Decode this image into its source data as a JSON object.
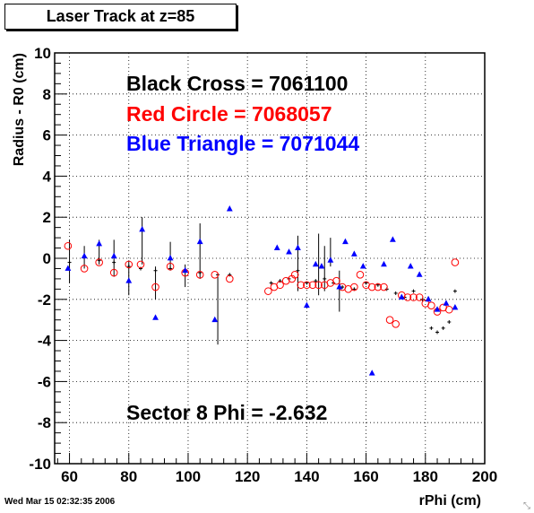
{
  "title": "Laser Track at z=85",
  "timestamp": "Wed Mar 15 02:32:35 2006",
  "colors": {
    "black": "#000000",
    "red": "#ff0000",
    "blue": "#0000ff"
  },
  "chart_data": {
    "type": "scatter",
    "xlabel": "rPhi (cm)",
    "ylabel": "Radius - R0 (cm)",
    "xlim": [
      55,
      200
    ],
    "ylim": [
      -10,
      10
    ],
    "x_ticks": [
      60,
      80,
      100,
      120,
      140,
      160,
      180,
      200
    ],
    "y_ticks": [
      -10,
      -8,
      -6,
      -4,
      -2,
      0,
      2,
      4,
      6,
      8,
      10
    ],
    "grid": true,
    "annotations": [
      {
        "text": "Black Cross  = 7061100",
        "color": "#000000"
      },
      {
        "text": "Red Circle = 7068057",
        "color": "#ff0000"
      },
      {
        "text": "Blue Triangle = 7071044",
        "color": "#0000ff"
      },
      {
        "text": "Sector 8 Phi = -2.632",
        "color": "#000000"
      }
    ],
    "series": [
      {
        "marker": "cross",
        "color": "#000000",
        "points": [
          {
            "x": 60,
            "y": -0.2
          },
          {
            "x": 65,
            "y": 0.1
          },
          {
            "x": 70,
            "y": -0.1
          },
          {
            "x": 75,
            "y": -0.2
          },
          {
            "x": 80,
            "y": -0.4
          },
          {
            "x": 84,
            "y": -0.5
          },
          {
            "x": 89,
            "y": -0.6
          },
          {
            "x": 94,
            "y": -0.5
          },
          {
            "x": 99,
            "y": -0.6
          },
          {
            "x": 104,
            "y": -0.7
          },
          {
            "x": 110,
            "y": -0.8
          },
          {
            "x": 114,
            "y": -0.8
          },
          {
            "x": 128,
            "y": -1.2
          },
          {
            "x": 131,
            "y": -1.1
          },
          {
            "x": 134,
            "y": -1.0
          },
          {
            "x": 137,
            "y": -0.6
          },
          {
            "x": 140,
            "y": -1.2
          },
          {
            "x": 143,
            "y": -1.1
          },
          {
            "x": 146,
            "y": -1.0
          },
          {
            "x": 149,
            "y": -1.2
          },
          {
            "x": 152,
            "y": -1.4
          },
          {
            "x": 156,
            "y": -1.5
          },
          {
            "x": 160,
            "y": -1.2
          },
          {
            "x": 164,
            "y": -1.3
          },
          {
            "x": 167,
            "y": -1.5
          },
          {
            "x": 170,
            "y": -1.7
          },
          {
            "x": 173,
            "y": -1.9
          },
          {
            "x": 176,
            "y": -1.6
          },
          {
            "x": 179,
            "y": -2.0
          },
          {
            "x": 182,
            "y": -3.4
          },
          {
            "x": 184,
            "y": -3.6
          },
          {
            "x": 186,
            "y": -3.4
          },
          {
            "x": 188,
            "y": -3.1
          },
          {
            "x": 190,
            "y": -1.6
          }
        ]
      },
      {
        "marker": "open-circle",
        "color": "#ff0000",
        "points": [
          {
            "x": 59.5,
            "y": 0.6
          },
          {
            "x": 65,
            "y": -0.5
          },
          {
            "x": 70,
            "y": -0.2
          },
          {
            "x": 75,
            "y": -0.7
          },
          {
            "x": 80,
            "y": -0.3
          },
          {
            "x": 84,
            "y": -0.3
          },
          {
            "x": 89,
            "y": -1.4
          },
          {
            "x": 94,
            "y": -0.4
          },
          {
            "x": 99,
            "y": -0.7
          },
          {
            "x": 104,
            "y": -0.8
          },
          {
            "x": 109,
            "y": -0.8
          },
          {
            "x": 114,
            "y": -1.0
          },
          {
            "x": 127,
            "y": -1.6
          },
          {
            "x": 129,
            "y": -1.4
          },
          {
            "x": 131,
            "y": -1.3
          },
          {
            "x": 133,
            "y": -1.1
          },
          {
            "x": 135,
            "y": -1.0
          },
          {
            "x": 136,
            "y": -0.8
          },
          {
            "x": 138,
            "y": -1.3
          },
          {
            "x": 140,
            "y": -1.3
          },
          {
            "x": 142,
            "y": -1.3
          },
          {
            "x": 144,
            "y": -1.3
          },
          {
            "x": 146,
            "y": -1.3
          },
          {
            "x": 148,
            "y": -1.2
          },
          {
            "x": 150,
            "y": -1.1
          },
          {
            "x": 152,
            "y": -1.4
          },
          {
            "x": 154,
            "y": -1.5
          },
          {
            "x": 156,
            "y": -1.4
          },
          {
            "x": 158,
            "y": -0.8
          },
          {
            "x": 160,
            "y": -1.3
          },
          {
            "x": 162,
            "y": -1.4
          },
          {
            "x": 164,
            "y": -1.4
          },
          {
            "x": 166,
            "y": -1.4
          },
          {
            "x": 168,
            "y": -3.0
          },
          {
            "x": 170,
            "y": -3.2
          },
          {
            "x": 172,
            "y": -1.8
          },
          {
            "x": 174,
            "y": -1.9
          },
          {
            "x": 176,
            "y": -1.9
          },
          {
            "x": 178,
            "y": -1.9
          },
          {
            "x": 180,
            "y": -2.2
          },
          {
            "x": 182,
            "y": -2.3
          },
          {
            "x": 184,
            "y": -2.6
          },
          {
            "x": 186,
            "y": -2.4
          },
          {
            "x": 188,
            "y": -2.5
          },
          {
            "x": 190,
            "y": -0.2
          }
        ]
      },
      {
        "marker": "filled-triangle",
        "color": "#0000ff",
        "points": [
          {
            "x": 59.5,
            "y": -0.5
          },
          {
            "x": 65,
            "y": 0.1
          },
          {
            "x": 70,
            "y": 0.7
          },
          {
            "x": 75,
            "y": 0.1
          },
          {
            "x": 80,
            "y": -1.1
          },
          {
            "x": 84.5,
            "y": 1.4
          },
          {
            "x": 89,
            "y": -2.9
          },
          {
            "x": 94,
            "y": 0.0
          },
          {
            "x": 99,
            "y": -0.6
          },
          {
            "x": 104,
            "y": 0.8
          },
          {
            "x": 109,
            "y": -3.0
          },
          {
            "x": 114,
            "y": 2.4
          },
          {
            "x": 130,
            "y": 0.5
          },
          {
            "x": 134,
            "y": 0.3
          },
          {
            "x": 137,
            "y": 0.5
          },
          {
            "x": 140,
            "y": -2.3
          },
          {
            "x": 143,
            "y": -0.3
          },
          {
            "x": 145,
            "y": -0.4
          },
          {
            "x": 148,
            "y": -0.1
          },
          {
            "x": 151,
            "y": -1.4
          },
          {
            "x": 153,
            "y": 0.8
          },
          {
            "x": 156,
            "y": 0.2
          },
          {
            "x": 159,
            "y": -0.4
          },
          {
            "x": 162,
            "y": -5.6
          },
          {
            "x": 166,
            "y": -0.3
          },
          {
            "x": 169,
            "y": 0.9
          },
          {
            "x": 172,
            "y": -1.9
          },
          {
            "x": 175,
            "y": -0.4
          },
          {
            "x": 178,
            "y": -0.8
          },
          {
            "x": 181,
            "y": -2.0
          },
          {
            "x": 184,
            "y": -2.5
          },
          {
            "x": 187,
            "y": -2.2
          },
          {
            "x": 190,
            "y": -2.4
          }
        ]
      }
    ],
    "error_bars": [
      {
        "x": 60,
        "lo": -1.2,
        "hi": 0.9
      },
      {
        "x": 65,
        "lo": -0.5,
        "hi": 0.6
      },
      {
        "x": 70,
        "lo": -0.3,
        "hi": 0.9
      },
      {
        "x": 75,
        "lo": -0.9,
        "hi": 0.9
      },
      {
        "x": 80,
        "lo": -1.8,
        "hi": -0.1
      },
      {
        "x": 84.5,
        "lo": -0.3,
        "hi": 2.0
      },
      {
        "x": 89,
        "lo": -2.0,
        "hi": -0.4
      },
      {
        "x": 94,
        "lo": -0.6,
        "hi": 0.8
      },
      {
        "x": 99,
        "lo": -1.4,
        "hi": -0.3
      },
      {
        "x": 104,
        "lo": -1.0,
        "hi": 1.7
      },
      {
        "x": 110,
        "lo": -4.2,
        "hi": -0.9
      },
      {
        "x": 137,
        "lo": -1.6,
        "hi": 1.1
      },
      {
        "x": 144,
        "lo": -1.8,
        "hi": 1.2
      },
      {
        "x": 146,
        "lo": -1.6,
        "hi": 0.6
      },
      {
        "x": 148,
        "lo": -0.4,
        "hi": 1.0
      },
      {
        "x": 151,
        "lo": -2.6,
        "hi": -0.6
      }
    ]
  }
}
